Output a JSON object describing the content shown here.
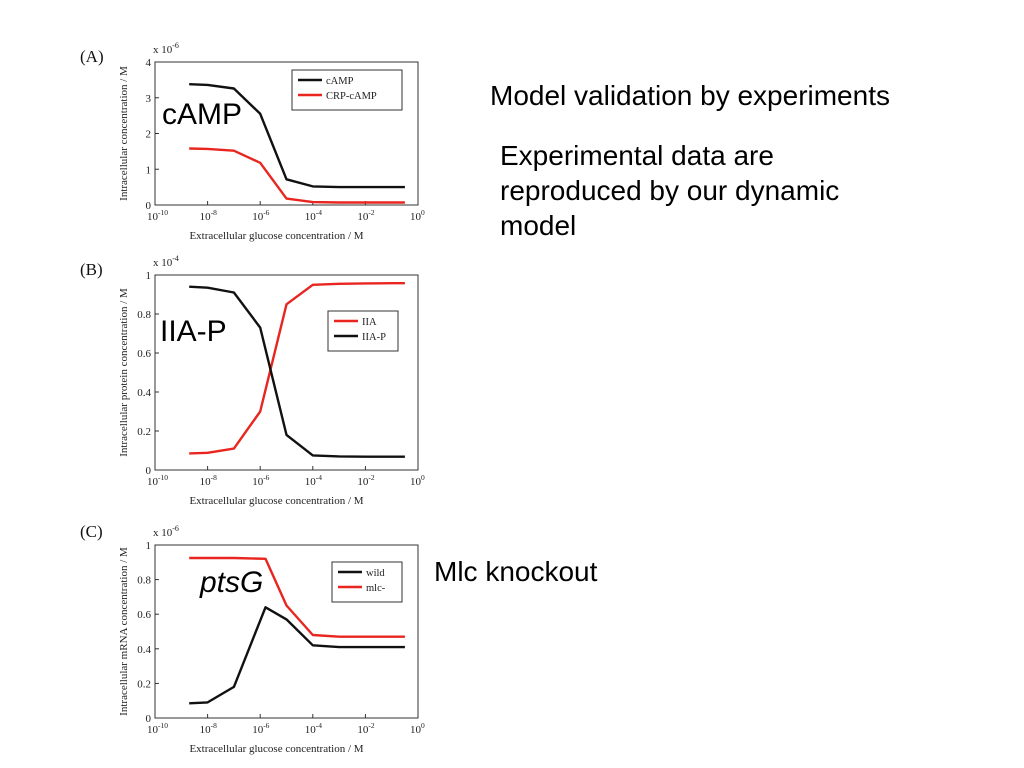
{
  "slide": {
    "title": "Model validation by experiments",
    "body": "Experimental data are\nreproduced by our dynamic\nmodel",
    "side_note": "Mlc knockout"
  },
  "chart_data": [
    {
      "panel": "(A)",
      "type": "line",
      "overlay_label": "cAMP",
      "overlay_italic": false,
      "xlabel": "Extracellular glucose concentration / M",
      "ylabel": "Intracellular concentration / M",
      "y_multiplier": "x 10",
      "y_exponent": "-6",
      "x_scale": "log",
      "xlim": [
        -10,
        0
      ],
      "ylim": [
        0,
        4
      ],
      "xticks": [
        -10,
        -8,
        -6,
        -4,
        -2,
        0
      ],
      "xtick_labels": [
        "10",
        "10",
        "10",
        "10",
        "10",
        "10"
      ],
      "xtick_exponents": [
        "-10",
        "-8",
        "-6",
        "-4",
        "-2",
        "0"
      ],
      "yticks": [
        0,
        1,
        2,
        3,
        4
      ],
      "ytick_labels": [
        "0",
        "1",
        "2",
        "3",
        "4"
      ],
      "legend_position": "top-right",
      "x": [
        -8.7,
        -8.0,
        -7.0,
        -6.0,
        -5.0,
        -4.0,
        -3.0,
        -2.0,
        -1.0,
        -0.5
      ],
      "series": [
        {
          "name": "cAMP",
          "color": "#111111",
          "values": [
            3.38,
            3.36,
            3.26,
            2.55,
            0.72,
            0.52,
            0.5,
            0.5,
            0.5,
            0.5
          ]
        },
        {
          "name": "CRP-cAMP",
          "color": "#e8261f",
          "values": [
            1.58,
            1.57,
            1.52,
            1.18,
            0.18,
            0.08,
            0.07,
            0.07,
            0.07,
            0.07
          ]
        }
      ]
    },
    {
      "panel": "(B)",
      "type": "line",
      "overlay_label": "IIA-P",
      "overlay_italic": false,
      "xlabel": "Extracellular glucose concentration / M",
      "ylabel": "Intracellular protein concentration / M",
      "y_multiplier": "x 10",
      "y_exponent": "-4",
      "x_scale": "log",
      "xlim": [
        -10,
        0
      ],
      "ylim": [
        0,
        1
      ],
      "xticks": [
        -10,
        -8,
        -6,
        -4,
        -2,
        0
      ],
      "xtick_labels": [
        "10",
        "10",
        "10",
        "10",
        "10",
        "10"
      ],
      "xtick_exponents": [
        "-10",
        "-8",
        "-6",
        "-4",
        "-2",
        "0"
      ],
      "yticks": [
        0,
        0.2,
        0.4,
        0.6,
        0.8,
        1
      ],
      "ytick_labels": [
        "0",
        "0.2",
        "0.4",
        "0.6",
        "0.8",
        "1"
      ],
      "legend_position": "right",
      "x": [
        -8.7,
        -8.0,
        -7.0,
        -6.0,
        -5.0,
        -4.0,
        -3.0,
        -2.0,
        -1.0,
        -0.5
      ],
      "series": [
        {
          "name": "IIA",
          "color": "#e8261f",
          "values": [
            0.085,
            0.088,
            0.11,
            0.3,
            0.85,
            0.95,
            0.955,
            0.957,
            0.958,
            0.958
          ]
        },
        {
          "name": "IIA-P",
          "color": "#111111",
          "values": [
            0.94,
            0.935,
            0.91,
            0.73,
            0.18,
            0.075,
            0.07,
            0.068,
            0.068,
            0.068
          ]
        }
      ]
    },
    {
      "panel": "(C)",
      "type": "line",
      "overlay_label": "ptsG",
      "overlay_italic": true,
      "xlabel": "Extracellular glucose concentration / M",
      "ylabel": "Intracellular mRNA concentration / M",
      "y_multiplier": "x 10",
      "y_exponent": "-6",
      "x_scale": "log",
      "xlim": [
        -10,
        0
      ],
      "ylim": [
        0,
        1
      ],
      "xticks": [
        -10,
        -8,
        -6,
        -4,
        -2,
        0
      ],
      "xtick_labels": [
        "10",
        "10",
        "10",
        "10",
        "10",
        "10"
      ],
      "xtick_exponents": [
        "-10",
        "-8",
        "-6",
        "-4",
        "-2",
        "0"
      ],
      "yticks": [
        0,
        0.2,
        0.4,
        0.6,
        0.8,
        1
      ],
      "ytick_labels": [
        "0",
        "0.2",
        "0.4",
        "0.6",
        "0.8",
        "1"
      ],
      "legend_position": "top-right",
      "x": [
        -8.7,
        -8.0,
        -7.0,
        -5.8,
        -5.0,
        -4.0,
        -3.0,
        -2.0,
        -1.0,
        -0.5
      ],
      "series": [
        {
          "name": "wild",
          "color": "#111111",
          "values": [
            0.085,
            0.09,
            0.18,
            0.64,
            0.57,
            0.42,
            0.41,
            0.41,
            0.41,
            0.41
          ]
        },
        {
          "name": "mlc-",
          "color": "#e8261f",
          "values": [
            0.925,
            0.925,
            0.925,
            0.92,
            0.65,
            0.48,
            0.47,
            0.47,
            0.47,
            0.47
          ]
        }
      ]
    }
  ]
}
